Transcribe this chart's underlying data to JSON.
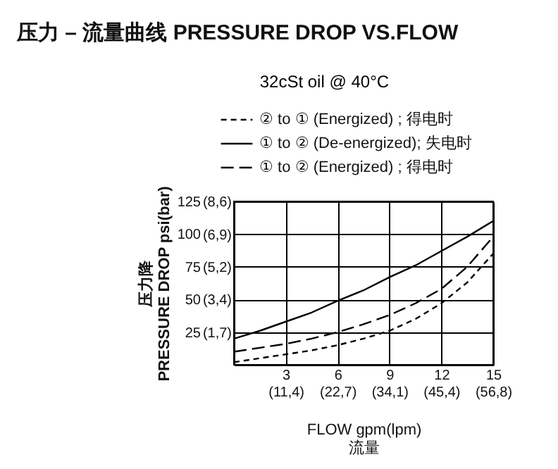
{
  "chart_data": {
    "type": "line",
    "title": "压力 – 流量曲线 PRESSURE DROP VS.FLOW",
    "subtitle": "32cSt oil @ 40°C",
    "xlabel": "FLOW gpm(lpm)\n流量",
    "ylabel": "压力降\nPRESSURE DROP psi(bar)",
    "x": [
      0,
      1.5,
      3,
      4.5,
      6,
      7.5,
      9,
      10.5,
      12,
      13.5,
      15
    ],
    "series": [
      {
        "name": "② to ① (Energized) ; 得电时",
        "color": "#000000",
        "line_style": "dotted",
        "values": [
          2,
          5,
          8,
          11,
          15,
          20,
          26,
          35,
          47,
          63,
          85
        ]
      },
      {
        "name": "① to ② (De-energized); 失电时",
        "color": "#000000",
        "line_style": "solid",
        "values": [
          20,
          26,
          33,
          40,
          49,
          57,
          67,
          76,
          87,
          98,
          110
        ]
      },
      {
        "name": "① to ② (Energized) ; 得电时",
        "color": "#000000",
        "line_style": "dashed",
        "values": [
          10,
          13,
          16,
          20,
          25,
          31,
          38,
          47,
          58,
          75,
          98
        ]
      }
    ],
    "xlim": [
      0,
      15
    ],
    "xticks": [
      3,
      6,
      9,
      12,
      15
    ],
    "x2lim": [
      0,
      56.78
    ],
    "x2ticks": [
      {
        "value": 11.36,
        "label": "(11,4)"
      },
      {
        "value": 22.71,
        "label": "(22,7)"
      },
      {
        "value": 34.07,
        "label": "(34,1)"
      },
      {
        "value": 45.42,
        "label": "(45,4)"
      },
      {
        "value": 56.78,
        "label": "(56,8)"
      }
    ],
    "ylim": [
      0,
      125
    ],
    "yticks": [
      25,
      50,
      75,
      100,
      125
    ],
    "y2lim": [
      0,
      8.62
    ],
    "y2ticks": [
      {
        "value": 1.72,
        "label": "(1,7)"
      },
      {
        "value": 3.45,
        "label": "(3,4)"
      },
      {
        "value": 5.17,
        "label": "(5,2)"
      },
      {
        "value": 6.89,
        "label": "(6,9)"
      },
      {
        "value": 8.62,
        "label": "(8,6)"
      }
    ],
    "grid": true,
    "legend": "top",
    "marker": "none"
  }
}
